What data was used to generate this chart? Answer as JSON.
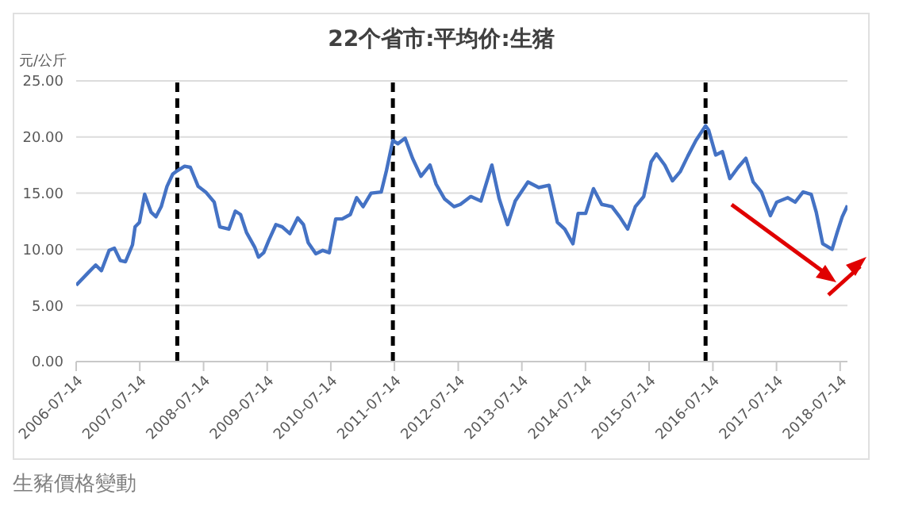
{
  "chart_data": {
    "type": "line",
    "title": "22个省市:平均价:生猪",
    "ylabel": "元/公斤",
    "annotations": [
      "生豬價格變動"
    ],
    "x": [
      "2006-07-14",
      "2006-09-20",
      "2006-11-03",
      "2006-12-06",
      "2007-01-19",
      "2007-02-18",
      "2007-03-24",
      "2007-04-23",
      "2007-06-02",
      "2007-06-17",
      "2007-07-12",
      "2007-08-11",
      "2007-09-17",
      "2007-10-15",
      "2007-11-14",
      "2007-12-17",
      "2008-01-19",
      "2008-02-14",
      "2008-03-27",
      "2008-04-29",
      "2008-06-13",
      "2008-07-26",
      "2008-09-13",
      "2008-10-15",
      "2008-12-06",
      "2009-01-12",
      "2009-02-11",
      "2009-03-17",
      "2009-05-03",
      "2009-05-25",
      "2009-06-24",
      "2009-07-23",
      "2009-09-02",
      "2009-10-08",
      "2009-11-21",
      "2010-01-05",
      "2010-02-07",
      "2010-03-06",
      "2010-04-19",
      "2010-05-29",
      "2010-07-05",
      "2010-08-11",
      "2010-09-17",
      "2010-11-03",
      "2010-12-09",
      "2011-01-15",
      "2011-03-02",
      "2011-04-29",
      "2011-05-29",
      "2011-07-05",
      "2011-08-03",
      "2011-09-13",
      "2011-10-26",
      "2011-12-13",
      "2012-02-03",
      "2012-03-09",
      "2012-04-26",
      "2012-06-20",
      "2012-07-26",
      "2012-09-24",
      "2012-11-21",
      "2013-01-23",
      "2013-03-06",
      "2013-04-23",
      "2013-06-06",
      "2013-08-18",
      "2013-10-19",
      "2013-12-17",
      "2014-02-03",
      "2014-03-17",
      "2014-05-03",
      "2014-06-02",
      "2014-07-15",
      "2014-08-29",
      "2014-10-15",
      "2014-12-13",
      "2015-01-26",
      "2015-03-13",
      "2015-04-26",
      "2015-06-13",
      "2015-07-26",
      "2015-08-25",
      "2015-10-12",
      "2015-11-25",
      "2016-01-08",
      "2016-02-21",
      "2016-04-08",
      "2016-06-02",
      "2016-06-20",
      "2016-07-30",
      "2016-09-06",
      "2016-10-19",
      "2016-12-06",
      "2017-01-19",
      "2017-03-02",
      "2017-04-19",
      "2017-06-09",
      "2017-07-15",
      "2017-09-17",
      "2017-10-29",
      "2017-12-13",
      "2018-01-29",
      "2018-02-27",
      "2018-04-05",
      "2018-05-29",
      "2018-06-27",
      "2018-07-26",
      "2018-08-25"
    ],
    "series": [
      {
        "color": "#4472c4",
        "values": [
          6.8,
          7.9,
          8.6,
          8.1,
          9.9,
          10.1,
          9.0,
          8.9,
          10.4,
          12.0,
          12.4,
          14.9,
          13.3,
          12.9,
          13.8,
          15.6,
          16.7,
          17.0,
          17.4,
          17.3,
          15.6,
          15.1,
          14.2,
          12.0,
          11.8,
          13.4,
          13.1,
          11.5,
          10.2,
          9.3,
          9.7,
          10.8,
          12.2,
          12.0,
          11.4,
          12.8,
          12.2,
          10.6,
          9.6,
          9.9,
          9.7,
          12.7,
          12.7,
          13.1,
          14.6,
          13.8,
          15.0,
          15.1,
          17.0,
          19.7,
          19.4,
          19.9,
          18.1,
          16.5,
          17.5,
          15.8,
          14.5,
          13.8,
          14.0,
          14.7,
          14.3,
          17.5,
          14.5,
          12.2,
          14.3,
          16.0,
          15.5,
          15.7,
          12.4,
          11.8,
          10.5,
          13.2,
          13.2,
          15.4,
          14.0,
          13.8,
          12.9,
          11.8,
          13.8,
          14.7,
          17.8,
          18.5,
          17.5,
          16.1,
          16.9,
          18.3,
          19.7,
          21.0,
          20.6,
          18.4,
          18.7,
          16.3,
          17.3,
          18.1,
          16.0,
          15.1,
          13.0,
          14.2,
          14.6,
          14.2,
          15.1,
          14.9,
          13.3,
          10.5,
          10.0,
          11.5,
          12.9,
          13.9
        ]
      }
    ],
    "xlim": [
      "2006-07-14",
      "2018-08-25"
    ],
    "xticks": [
      "2006-07-14",
      "2007-07-14",
      "2008-07-14",
      "2009-07-14",
      "2010-07-14",
      "2011-07-14",
      "2012-07-14",
      "2013-07-14",
      "2014-07-14",
      "2015-07-14",
      "2016-07-14",
      "2017-07-14",
      "2018-07-14"
    ],
    "ylim": [
      0,
      25
    ],
    "yticks": [
      {
        "value": 0,
        "label": "0.00"
      },
      {
        "value": 5,
        "label": "5.00"
      },
      {
        "value": 10,
        "label": "10.00"
      },
      {
        "value": 15,
        "label": "15.00"
      },
      {
        "value": 20,
        "label": "20.00"
      },
      {
        "value": 25,
        "label": "25.00"
      }
    ],
    "ref_lines": [
      {
        "axis": "x",
        "value": "2008-02-14",
        "color": "#000000",
        "line_style": "dashed"
      },
      {
        "axis": "x",
        "value": "2011-07-05",
        "color": "#000000",
        "line_style": "dashed"
      },
      {
        "axis": "x",
        "value": "2016-06-02",
        "color": "#000000",
        "line_style": "dashed"
      }
    ],
    "grid": "y"
  }
}
